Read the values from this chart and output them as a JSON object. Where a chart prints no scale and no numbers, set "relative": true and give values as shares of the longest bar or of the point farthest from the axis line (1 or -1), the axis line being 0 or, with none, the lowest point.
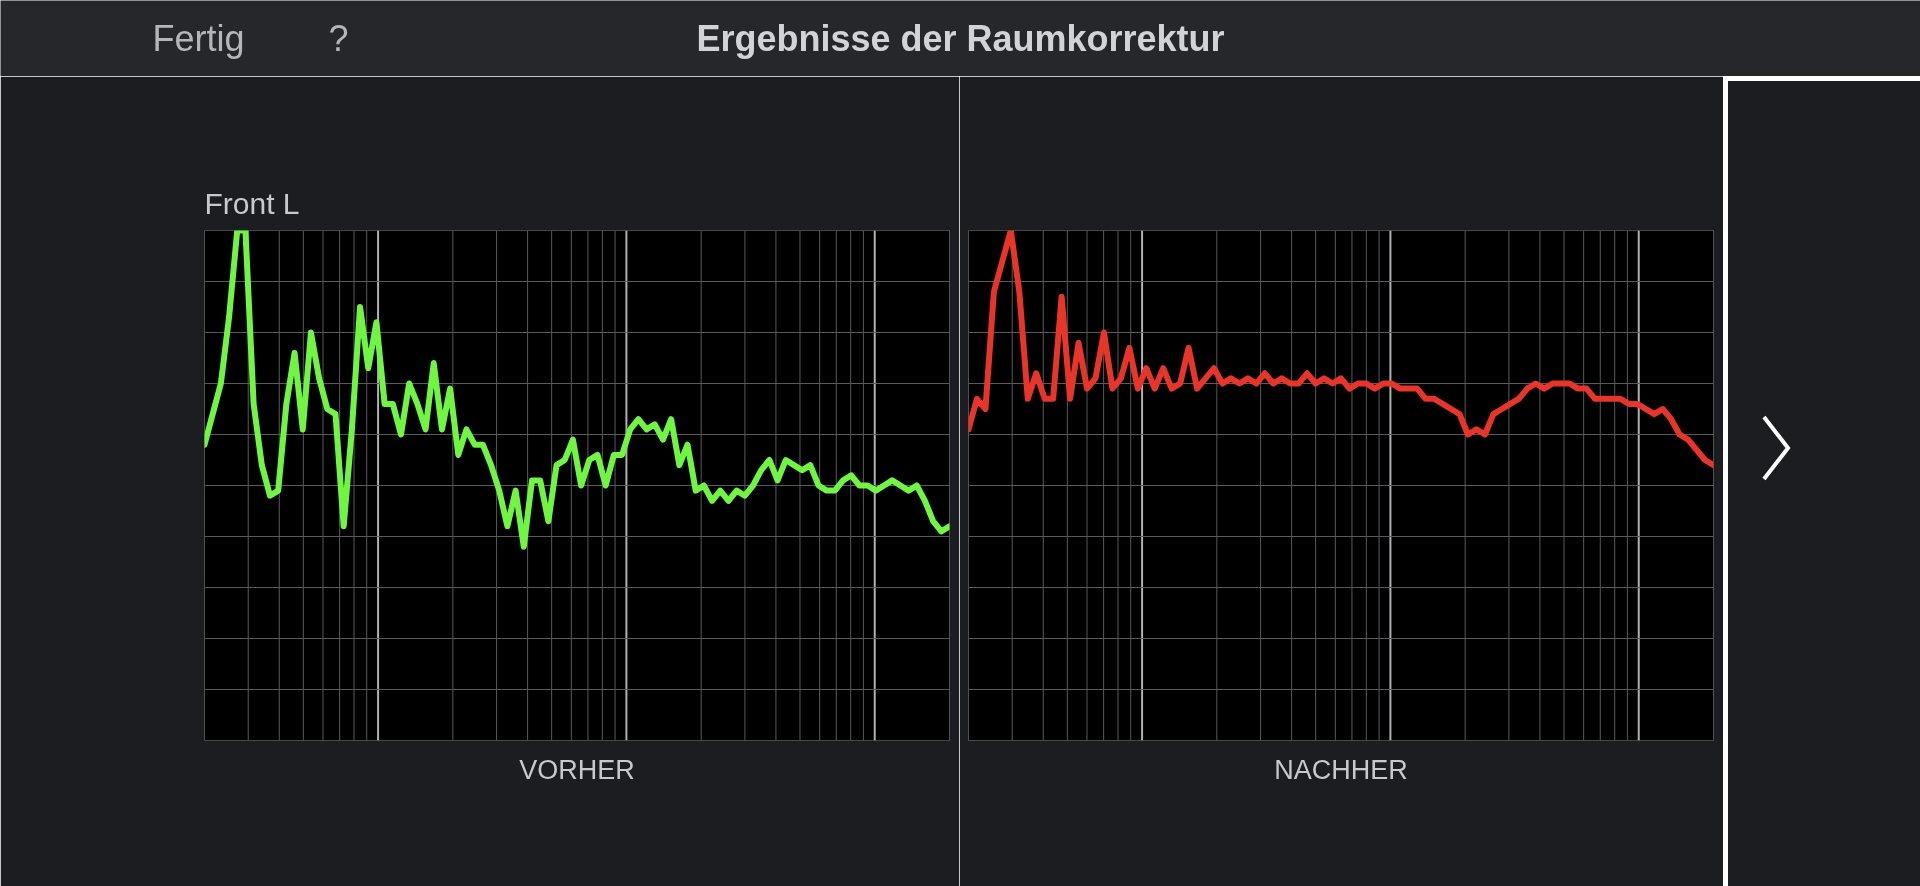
{
  "chart_data": [
    {
      "type": "line",
      "title": "Ergebnisse der Raumkorrektur",
      "subtitle": "Front L",
      "xlabel": "VORHER",
      "annotations": [
        "Fertig",
        "?"
      ],
      "relative": true,
      "grid": true,
      "tick_labels": false,
      "line_style": "solid",
      "categories": [
        null,
        null,
        null,
        null,
        null,
        null,
        null,
        null,
        null,
        null,
        null,
        null,
        null,
        null,
        null,
        null,
        null,
        null,
        null,
        null,
        null,
        null,
        null,
        null,
        null,
        null,
        null,
        null,
        null,
        null,
        null,
        null,
        null,
        null,
        null,
        null,
        null,
        null,
        null,
        null,
        null,
        null,
        null,
        null,
        null,
        null,
        null,
        null,
        null,
        null,
        null,
        null,
        null,
        null,
        null,
        null,
        null,
        null,
        null,
        null,
        null,
        null,
        null,
        null,
        null,
        null,
        null,
        null,
        null,
        null,
        null,
        null,
        null,
        null,
        null,
        null,
        null,
        null,
        null,
        null,
        null,
        null,
        null,
        null,
        null,
        null,
        null,
        null,
        null,
        null,
        null,
        null
      ],
      "series": [
        {
          "color": "#6ff542",
          "values": [
            0.58,
            0.64,
            0.7,
            0.83,
            1.0,
            1.0,
            0.66,
            0.54,
            0.48,
            0.49,
            0.66,
            0.76,
            0.61,
            0.8,
            0.71,
            0.65,
            0.64,
            0.42,
            0.61,
            0.85,
            0.73,
            0.82,
            0.66,
            0.66,
            0.6,
            0.7,
            0.66,
            0.61,
            0.74,
            0.61,
            0.69,
            0.56,
            0.61,
            0.58,
            0.58,
            0.54,
            0.49,
            0.42,
            0.49,
            0.38,
            0.51,
            0.51,
            0.43,
            0.54,
            0.55,
            0.59,
            0.5,
            0.55,
            0.56,
            0.5,
            0.56,
            0.56,
            0.61,
            0.63,
            0.61,
            0.62,
            0.59,
            0.63,
            0.54,
            0.58,
            0.49,
            0.5,
            0.47,
            0.49,
            0.47,
            0.49,
            0.48,
            0.5,
            0.53,
            0.55,
            0.51,
            0.55,
            0.54,
            0.53,
            0.54,
            0.5,
            0.49,
            0.49,
            0.51,
            0.52,
            0.5,
            0.5,
            0.49,
            0.5,
            0.51,
            0.5,
            0.49,
            0.5,
            0.47,
            0.43,
            0.41,
            0.42
          ]
        }
      ]
    },
    {
      "type": "line",
      "xlabel": "NACHHER",
      "relative": true,
      "grid": true,
      "tick_labels": false,
      "line_style": "solid",
      "categories": [
        null,
        null,
        null,
        null,
        null,
        null,
        null,
        null,
        null,
        null,
        null,
        null,
        null,
        null,
        null,
        null,
        null,
        null,
        null,
        null,
        null,
        null,
        null,
        null,
        null,
        null,
        null,
        null,
        null,
        null,
        null,
        null,
        null,
        null,
        null,
        null,
        null,
        null,
        null,
        null,
        null,
        null,
        null,
        null,
        null,
        null,
        null,
        null,
        null,
        null,
        null,
        null,
        null,
        null,
        null,
        null,
        null,
        null,
        null,
        null,
        null,
        null,
        null,
        null,
        null,
        null,
        null,
        null,
        null,
        null,
        null,
        null,
        null,
        null,
        null,
        null,
        null,
        null,
        null,
        null,
        null,
        null,
        null,
        null,
        null,
        null,
        null,
        null,
        null
      ],
      "series": [
        {
          "color": "#e8352a",
          "values": [
            0.61,
            0.67,
            0.65,
            0.88,
            0.94,
            1.0,
            0.88,
            0.67,
            0.72,
            0.67,
            0.67,
            0.87,
            0.67,
            0.78,
            0.69,
            0.71,
            0.8,
            0.69,
            0.71,
            0.77,
            0.69,
            0.73,
            0.69,
            0.73,
            0.69,
            0.7,
            0.77,
            0.69,
            0.71,
            0.73,
            0.7,
            0.71,
            0.7,
            0.71,
            0.7,
            0.72,
            0.7,
            0.71,
            0.7,
            0.7,
            0.72,
            0.7,
            0.71,
            0.7,
            0.71,
            0.69,
            0.7,
            0.7,
            0.69,
            0.7,
            0.7,
            0.69,
            0.69,
            0.69,
            0.67,
            0.67,
            0.66,
            0.65,
            0.64,
            0.6,
            0.61,
            0.6,
            0.64,
            0.65,
            0.66,
            0.67,
            0.69,
            0.7,
            0.69,
            0.7,
            0.7,
            0.7,
            0.69,
            0.69,
            0.67,
            0.67,
            0.67,
            0.67,
            0.66,
            0.66,
            0.65,
            0.64,
            0.65,
            0.63,
            0.6,
            0.59,
            0.57,
            0.55,
            0.54
          ]
        }
      ]
    }
  ]
}
